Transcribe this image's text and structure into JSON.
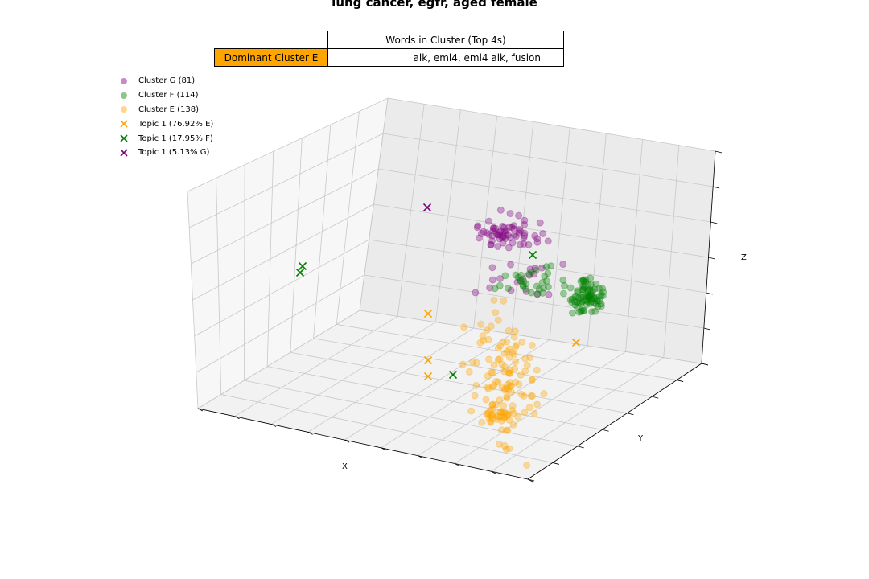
{
  "chart_data": {
    "type": "scatter",
    "title": "lung cancer, egfr, aged female",
    "xlabel": "X",
    "ylabel": "Y",
    "zlabel": "Z",
    "projection": "3d",
    "grid": true,
    "legend_position": "top-left",
    "table": {
      "header": "Words in Cluster (Top 4s)",
      "row_label": "Dominant Cluster E",
      "row_value": "alk, eml4, eml4 alk, fusion"
    },
    "legend": [
      {
        "label": "Cluster G (81)",
        "marker": "circle",
        "color": "#800080"
      },
      {
        "label": "Cluster F (114)",
        "marker": "circle",
        "color": "#008000"
      },
      {
        "label": "Cluster E (138)",
        "marker": "circle",
        "color": "#ffa500"
      },
      {
        "label": "Topic 1 (76.92% E)",
        "marker": "x",
        "color": "#ffa500"
      },
      {
        "label": "Topic 1 (17.95% F)",
        "marker": "x",
        "color": "#008000"
      },
      {
        "label": "Topic 1 (5.13% G)",
        "marker": "x",
        "color": "#800080"
      }
    ],
    "clusters": [
      {
        "name": "Cluster G",
        "count": 81,
        "color": "#800080"
      },
      {
        "name": "Cluster F",
        "count": 114,
        "color": "#008000"
      },
      {
        "name": "Cluster E",
        "count": 138,
        "color": "#ffa500"
      }
    ]
  }
}
